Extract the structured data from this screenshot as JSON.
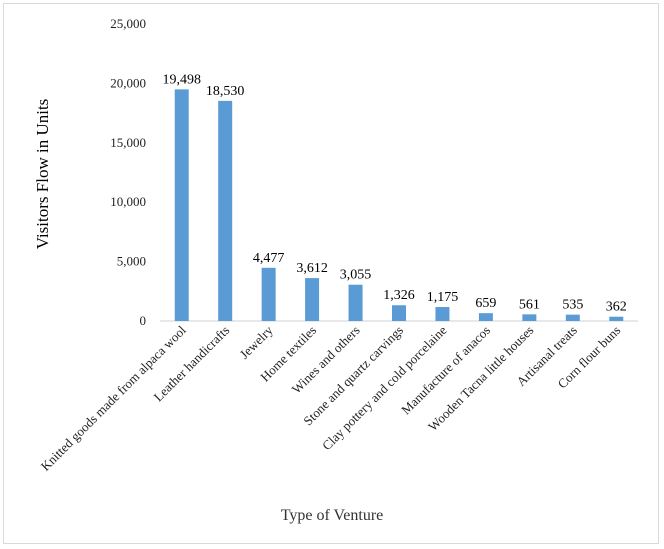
{
  "chart_data": {
    "type": "bar",
    "xlabel": "Type of Venture",
    "ylabel": "Visitors Flow in Units",
    "ylim": [
      0,
      25000
    ],
    "yticks": [
      "0",
      "5,000",
      "10,000",
      "15,000",
      "20,000",
      "25,000"
    ],
    "ytick_values": [
      0,
      5000,
      10000,
      15000,
      20000,
      25000
    ],
    "grid": false,
    "bar_color": "#5b9bd5",
    "categories": [
      "Knitted goods made from alpaca wool",
      "Leather handicrafts",
      "Jewelry",
      "Home textiles",
      "Wines and others",
      "Stone and quartz carvings",
      "Clay pottery and cold porcelaine",
      "Manufacture of anacos",
      "Wooden Tacna little houses",
      "Artisanal treats",
      "Corn flour buns"
    ],
    "values": [
      19498,
      18530,
      4477,
      3612,
      3055,
      1326,
      1175,
      659,
      561,
      535,
      362
    ],
    "value_labels": [
      "19,498",
      "18,530",
      "4,477",
      "3,612",
      "3,055",
      "1,326",
      "1,175",
      "659",
      "561",
      "535",
      "362"
    ]
  }
}
